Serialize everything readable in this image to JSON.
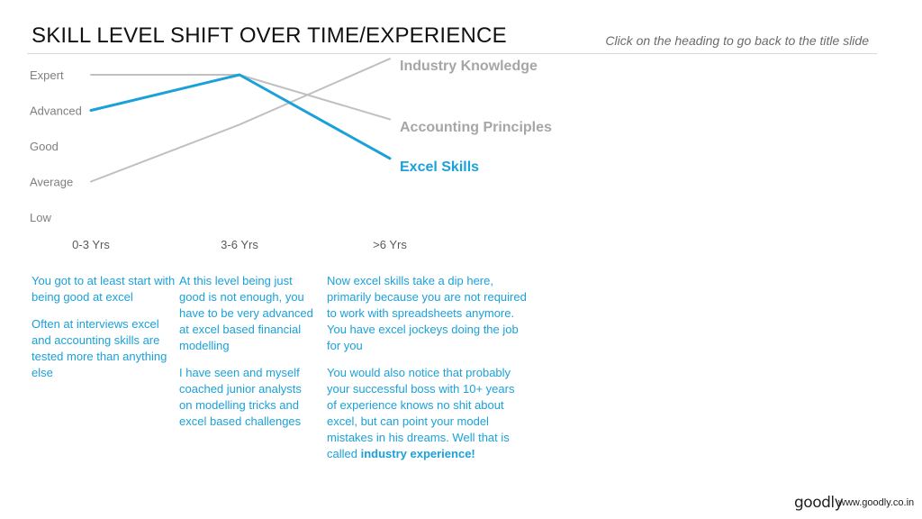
{
  "slide": {
    "title": "SKILL LEVEL SHIFT OVER TIME/EXPERIENCE",
    "hint": "Click on the heading to go back to the title slide"
  },
  "chart_data": {
    "type": "line",
    "y_levels": [
      "Low",
      "Average",
      "Good",
      "Advanced",
      "Expert"
    ],
    "categories": [
      "0-3 Yrs",
      "3-6 Yrs",
      ">6 Yrs"
    ],
    "series": [
      {
        "name": "Industry Knowledge",
        "values": [
          1,
          2.6,
          4.45
        ],
        "color": "#c0c0c0",
        "label_color": "#a6a6a6"
      },
      {
        "name": "Accounting Principles",
        "values": [
          4,
          4,
          2.75
        ],
        "color": "#c0c0c0",
        "label_color": "#a6a6a6"
      },
      {
        "name": "Excel Skills",
        "values": [
          3,
          4,
          1.65
        ],
        "color": "#1ba1d9",
        "label_color": "#1ba1d9"
      }
    ],
    "ylim": [
      0,
      4.5
    ],
    "grid": false,
    "legend": "inline-right"
  },
  "columns": [
    {
      "paras": [
        "You got to at least start with being good at excel",
        "Often at interviews excel and accounting skills are tested more than anything else"
      ]
    },
    {
      "paras": [
        "At this level being just good is not enough, you have to be very advanced at excel based financial modelling",
        "I have seen and myself coached junior analysts on modelling tricks and excel based challenges"
      ]
    },
    {
      "paras": [
        "Now excel skills take a dip here, primarily because you are not required to work with spreadsheets anymore. You have excel jockeys doing the job for you",
        "You would also notice that probably your successful boss with 10+ years of experience knows no shit about excel, but can point your model mistakes in his dreams. Well that is called"
      ],
      "emphasis": "industry experience!"
    }
  ],
  "footer": {
    "logo": "goodly",
    "url": "www.goodly.co.in"
  }
}
